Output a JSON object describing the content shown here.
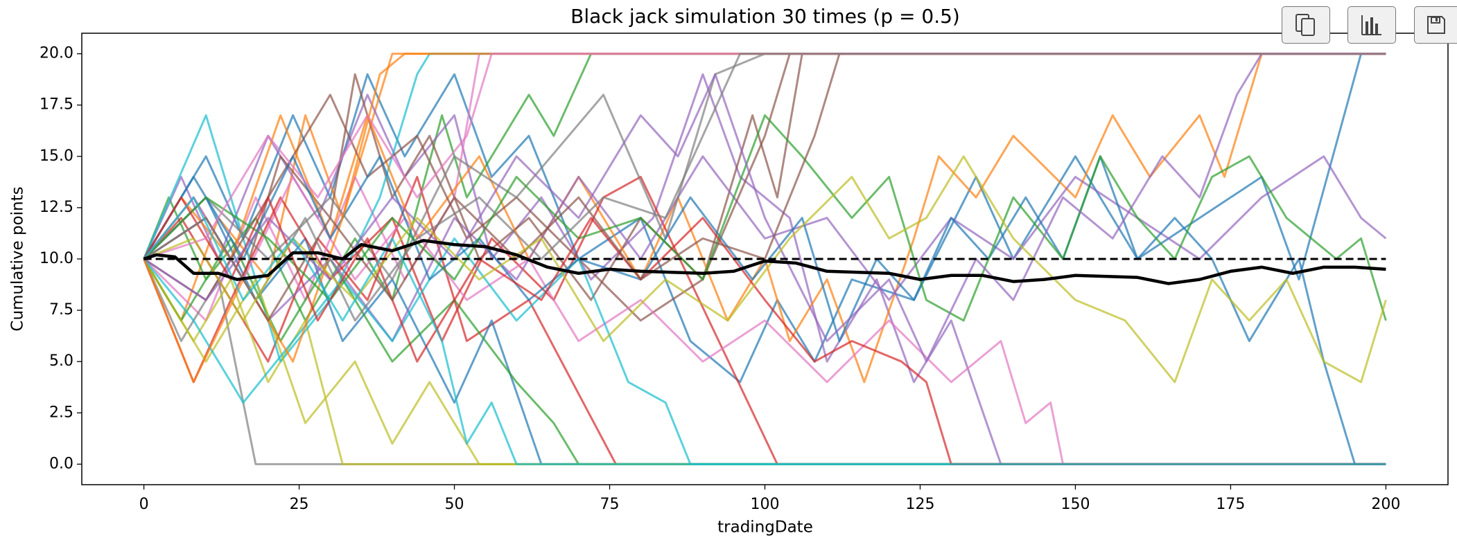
{
  "chart_data": {
    "type": "line",
    "title": "Black jack simulation 30 times (p = 0.5)",
    "xlabel": "tradingDate",
    "ylabel": "Cumulative points",
    "xlim": [
      -10,
      210
    ],
    "ylim": [
      -1,
      21
    ],
    "xticks": [
      0,
      25,
      50,
      75,
      100,
      125,
      150,
      175,
      200
    ],
    "yticks": [
      {
        "value": 0,
        "label": "0.0"
      },
      2.5,
      {
        "value": 5,
        "label": "5.0"
      },
      7.5,
      {
        "value": 10,
        "label": "10.0"
      },
      12.5,
      {
        "value": 15,
        "label": "15.0"
      },
      17.5,
      {
        "value": 20,
        "label": "20.0"
      }
    ],
    "grid": false,
    "series": [
      {
        "color": "#1f77b4",
        "x": [
          0,
          10,
          16,
          24,
          30,
          36,
          42,
          50,
          56,
          62,
          70,
          80,
          88,
          96,
          102,
          108,
          114,
          124,
          134,
          140,
          150,
          160,
          170,
          180,
          186,
          196,
          200
        ],
        "values": [
          10,
          15,
          11,
          17,
          13,
          19,
          15,
          19,
          14,
          16,
          10,
          12,
          6,
          4,
          8,
          5,
          9,
          8,
          14,
          10,
          15,
          10,
          12,
          14,
          9,
          20,
          20
        ]
      },
      {
        "color": "#ff7f0e",
        "x": [
          0,
          6,
          12,
          20,
          26,
          32,
          38,
          40,
          200
        ],
        "values": [
          10,
          7,
          12,
          9,
          17,
          12,
          18,
          20,
          20
        ]
      },
      {
        "color": "#2ca02c",
        "x": [
          0,
          4,
          10,
          18,
          26,
          34,
          40,
          48,
          52,
          62,
          66,
          72,
          200
        ],
        "values": [
          10,
          13,
          9,
          12,
          7,
          11,
          8,
          17,
          13,
          18,
          16,
          20,
          20
        ]
      },
      {
        "color": "#d62728",
        "x": [
          0,
          8,
          14,
          20,
          28,
          36,
          44,
          52,
          62,
          76,
          200
        ],
        "values": [
          10,
          4,
          8,
          5,
          11,
          8,
          14,
          6,
          8,
          0,
          0
        ]
      },
      {
        "color": "#9467bd",
        "x": [
          0,
          6,
          12,
          20,
          28,
          36,
          42,
          50,
          56,
          64,
          72,
          82,
          90,
          96,
          104,
          110,
          118,
          124,
          130,
          138,
          200
        ],
        "values": [
          10,
          14,
          10,
          16,
          12,
          18,
          14,
          17,
          10,
          13,
          9,
          12,
          19,
          14,
          12,
          5,
          9,
          4,
          7,
          0,
          0
        ]
      },
      {
        "color": "#8c564b",
        "x": [
          0,
          8,
          16,
          22,
          30,
          34,
          40,
          46,
          54,
          62,
          72,
          80,
          90,
          98,
          102,
          106,
          200
        ],
        "values": [
          10,
          13,
          9,
          15,
          12,
          19,
          13,
          16,
          10,
          12,
          8,
          12,
          9,
          17,
          13,
          20,
          20
        ]
      },
      {
        "color": "#e377c2",
        "x": [
          0,
          10,
          18,
          26,
          34,
          42,
          50,
          54,
          200
        ],
        "values": [
          10,
          7,
          13,
          8,
          14,
          9,
          13,
          20,
          20
        ]
      },
      {
        "color": "#7f7f7f",
        "x": [
          0,
          6,
          12,
          18,
          200
        ],
        "values": [
          10,
          6,
          9,
          0,
          0
        ]
      },
      {
        "color": "#bcbd22",
        "x": [
          0,
          8,
          14,
          20,
          26,
          32,
          200
        ],
        "values": [
          10,
          6,
          9,
          4,
          7,
          0,
          0
        ]
      },
      {
        "color": "#17becf",
        "x": [
          0,
          10,
          16,
          22,
          30,
          38,
          44,
          46,
          200
        ],
        "values": [
          10,
          17,
          11,
          5,
          8,
          13,
          19,
          20,
          20
        ]
      },
      {
        "color": "#1f77b4",
        "x": [
          0,
          10,
          18,
          26,
          32,
          40,
          50,
          56,
          64,
          200
        ],
        "values": [
          10,
          13,
          8,
          11,
          6,
          9,
          3,
          7,
          0,
          0
        ]
      },
      {
        "color": "#ff7f0e",
        "x": [
          0,
          6,
          14,
          22,
          30,
          36,
          44,
          54,
          62,
          70,
          80,
          86,
          94,
          100,
          104,
          110,
          116,
          124,
          128,
          134,
          140,
          150,
          156,
          162,
          170,
          174,
          180,
          200
        ],
        "values": [
          10,
          13,
          10,
          17,
          11,
          17,
          11,
          15,
          10,
          14,
          9,
          13,
          7,
          10,
          6,
          9,
          4,
          11,
          15,
          13,
          16,
          13,
          17,
          14,
          17,
          14,
          20,
          20
        ]
      },
      {
        "color": "#2ca02c",
        "x": [
          0,
          6,
          14,
          22,
          30,
          40,
          50,
          60,
          66,
          70,
          200
        ],
        "values": [
          10,
          7,
          11,
          6,
          10,
          5,
          8,
          4,
          2,
          0,
          0
        ]
      },
      {
        "color": "#d62728",
        "x": [
          0,
          6,
          14,
          22,
          30,
          40,
          48,
          56,
          66,
          74,
          80,
          102,
          200
        ],
        "values": [
          10,
          12,
          8,
          13,
          9,
          12,
          6,
          11,
          8,
          13,
          14,
          0,
          0
        ]
      },
      {
        "color": "#9467bd",
        "x": [
          0,
          10,
          20,
          30,
          40,
          50,
          60,
          70,
          80,
          90,
          100,
          110,
          120,
          130,
          140,
          150,
          160,
          170,
          180,
          190,
          196,
          200
        ],
        "values": [
          10,
          12,
          7,
          10,
          6,
          12,
          9,
          14,
          10,
          15,
          11,
          12,
          8,
          12,
          10,
          14,
          12,
          10,
          13,
          15,
          12,
          11
        ]
      },
      {
        "color": "#8c564b",
        "x": [
          0,
          10,
          20,
          30,
          36,
          44,
          52,
          60,
          70,
          80,
          90,
          100,
          104,
          200
        ],
        "values": [
          10,
          8,
          13,
          18,
          14,
          16,
          11,
          13,
          10,
          7,
          9,
          16,
          20,
          20
        ]
      },
      {
        "color": "#e377c2",
        "x": [
          0,
          8,
          16,
          24,
          34,
          42,
          52,
          62,
          70,
          80,
          90,
          100,
          110,
          120,
          130,
          138,
          142,
          146,
          148,
          200
        ],
        "values": [
          10,
          13,
          9,
          14,
          9,
          12,
          8,
          10,
          6,
          8,
          5,
          7,
          4,
          7,
          4,
          6,
          2,
          3,
          0,
          0
        ]
      },
      {
        "color": "#7f7f7f",
        "x": [
          0,
          10,
          20,
          30,
          40,
          50,
          60,
          74,
          84,
          92,
          100,
          200
        ],
        "values": [
          10,
          13,
          10,
          13,
          9,
          15,
          13,
          18,
          11,
          19,
          20,
          20
        ]
      },
      {
        "color": "#bcbd22",
        "x": [
          0,
          10,
          18,
          26,
          34,
          40,
          46,
          54,
          200
        ],
        "values": [
          10,
          5,
          9,
          2,
          5,
          1,
          4,
          0,
          0
        ]
      },
      {
        "color": "#17becf",
        "x": [
          0,
          8,
          16,
          24,
          32,
          40,
          50,
          60,
          70,
          78,
          84,
          88,
          200
        ],
        "values": [
          10,
          7,
          3,
          6,
          9,
          6,
          11,
          7,
          10,
          4,
          3,
          0,
          0
        ]
      },
      {
        "color": "#1f77b4",
        "x": [
          0,
          8,
          16,
          24,
          30,
          38,
          46,
          54,
          62,
          70,
          80,
          88,
          98,
          106,
          112,
          118,
          124,
          130,
          136,
          142,
          148,
          154,
          160,
          166,
          172,
          178,
          186,
          190,
          195,
          200
        ],
        "values": [
          10,
          14,
          10,
          15,
          11,
          15,
          9,
          11,
          8,
          10,
          9,
          13,
          9,
          12,
          6,
          10,
          8,
          12,
          10,
          13,
          10,
          15,
          10,
          12,
          10,
          6,
          10,
          5,
          0,
          0
        ]
      },
      {
        "color": "#ff7f0e",
        "x": [
          0,
          8,
          16,
          24,
          32,
          38,
          42,
          200
        ],
        "values": [
          10,
          4,
          9,
          5,
          12,
          19,
          20,
          20
        ]
      },
      {
        "color": "#2ca02c",
        "x": [
          0,
          10,
          20,
          30,
          40,
          50,
          60,
          70,
          80,
          90,
          100,
          106,
          114,
          120,
          126,
          132,
          140,
          148,
          154,
          160,
          166,
          172,
          178,
          184,
          192,
          196,
          200
        ],
        "values": [
          10,
          13,
          11,
          8,
          12,
          9,
          14,
          11,
          12,
          9,
          17,
          15,
          12,
          14,
          8,
          7,
          13,
          10,
          15,
          12,
          10,
          14,
          15,
          12,
          10,
          11,
          7
        ]
      },
      {
        "color": "#d62728",
        "x": [
          0,
          6,
          14,
          20,
          28,
          36,
          44,
          54,
          64,
          72,
          80,
          90,
          100,
          108,
          114,
          122,
          126,
          130,
          200
        ],
        "values": [
          10,
          13,
          9,
          13,
          7,
          11,
          5,
          10,
          8,
          12,
          9,
          12,
          8,
          5,
          6,
          5,
          4,
          0,
          0
        ]
      },
      {
        "color": "#9467bd",
        "x": [
          0,
          10,
          20,
          30,
          40,
          50,
          60,
          70,
          80,
          86,
          92,
          100,
          110,
          120,
          126,
          134,
          140,
          148,
          156,
          164,
          170,
          176,
          180,
          200
        ],
        "values": [
          10,
          8,
          12,
          9,
          13,
          10,
          15,
          12,
          17,
          15,
          19,
          12,
          6,
          9,
          5,
          10,
          8,
          13,
          11,
          15,
          13,
          18,
          20,
          20
        ]
      },
      {
        "color": "#8c564b",
        "x": [
          0,
          10,
          20,
          30,
          40,
          50,
          60,
          70,
          80,
          90,
          100,
          108,
          112,
          200
        ],
        "values": [
          10,
          12,
          7,
          12,
          8,
          13,
          10,
          13,
          9,
          11,
          10,
          16,
          20,
          20
        ]
      },
      {
        "color": "#e377c2",
        "x": [
          0,
          10,
          20,
          28,
          36,
          44,
          52,
          56,
          200
        ],
        "values": [
          10,
          11,
          16,
          13,
          17,
          13,
          16,
          20,
          20
        ]
      },
      {
        "color": "#7f7f7f",
        "x": [
          0,
          10,
          18,
          26,
          34,
          44,
          54,
          64,
          74,
          84,
          96,
          200
        ],
        "values": [
          10,
          12,
          8,
          12,
          7,
          11,
          13,
          10,
          13,
          12,
          20,
          20
        ]
      },
      {
        "color": "#bcbd22",
        "x": [
          0,
          8,
          16,
          24,
          34,
          44,
          54,
          64,
          74,
          84,
          94,
          104,
          114,
          120,
          126,
          132,
          140,
          150,
          158,
          166,
          172,
          178,
          184,
          190,
          196,
          200
        ],
        "values": [
          10,
          11,
          7,
          11,
          8,
          12,
          9,
          11,
          6,
          9,
          7,
          11,
          14,
          11,
          12,
          15,
          11,
          8,
          7,
          4,
          9,
          7,
          9,
          5,
          4,
          8
        ]
      },
      {
        "color": "#17becf",
        "x": [
          0,
          8,
          16,
          24,
          32,
          40,
          48,
          52,
          56,
          60,
          200
        ],
        "values": [
          10,
          13,
          8,
          11,
          7,
          11,
          6,
          1,
          3,
          0,
          0
        ]
      }
    ],
    "mean_line": {
      "color": "#000000",
      "x": [
        0,
        2,
        5,
        8,
        12,
        15,
        20,
        24,
        28,
        32,
        35,
        40,
        45,
        50,
        55,
        60,
        65,
        70,
        75,
        80,
        90,
        95,
        100,
        105,
        110,
        120,
        125,
        130,
        135,
        140,
        145,
        150,
        160,
        165,
        170,
        175,
        180,
        185,
        190,
        195,
        200
      ],
      "values": [
        10,
        10.2,
        10.1,
        9.3,
        9.3,
        9,
        9.2,
        10.3,
        10.3,
        10,
        10.7,
        10.4,
        10.9,
        10.7,
        10.6,
        10.2,
        9.6,
        9.3,
        9.5,
        9.4,
        9.3,
        9.4,
        9.9,
        9.8,
        9.4,
        9.3,
        9,
        9.2,
        9.2,
        8.9,
        9,
        9.2,
        9.1,
        8.8,
        9,
        9.4,
        9.6,
        9.3,
        9.6,
        9.6,
        9.5
      ]
    },
    "reference_line": {
      "value": 10,
      "color": "#000000",
      "style": "dashed"
    }
  }
}
